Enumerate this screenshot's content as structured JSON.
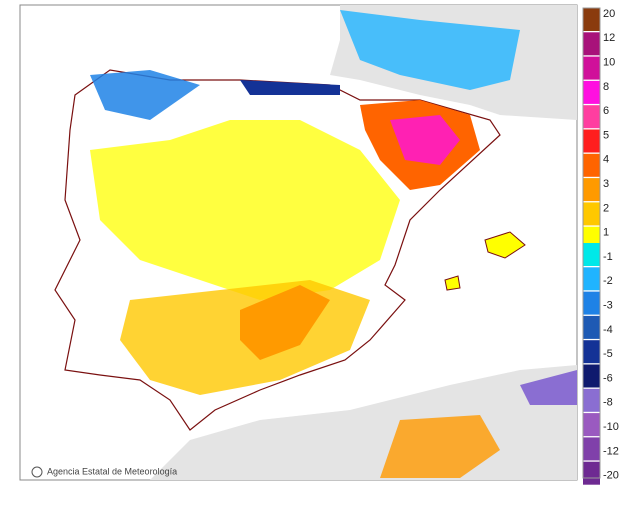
{
  "credit": "Agencia Estatal de Meteorología",
  "legend": {
    "items": [
      {
        "label": 20,
        "color": "#8a3b0e"
      },
      {
        "label": 12,
        "color": "#a8127a"
      },
      {
        "label": 10,
        "color": "#d0109a"
      },
      {
        "label": 8,
        "color": "#ff10e0"
      },
      {
        "label": 6,
        "color": "#ff3ea0"
      },
      {
        "label": 5,
        "color": "#ff1e1e"
      },
      {
        "label": 4,
        "color": "#ff6400"
      },
      {
        "label": 3,
        "color": "#ff9a00"
      },
      {
        "label": 2,
        "color": "#ffc800"
      },
      {
        "label": 1,
        "color": "#ffff00"
      },
      {
        "label": -1,
        "color": "#00e8e8"
      },
      {
        "label": -2,
        "color": "#20b4ff"
      },
      {
        "label": -3,
        "color": "#1e82e6"
      },
      {
        "label": -4,
        "color": "#1e5ab4"
      },
      {
        "label": -5,
        "color": "#143296"
      },
      {
        "label": -6,
        "color": "#0f1a6e"
      },
      {
        "label": -8,
        "color": "#8a6ed2"
      },
      {
        "label": -10,
        "color": "#9a5ac0"
      },
      {
        "label": -12,
        "color": "#8040aa"
      },
      {
        "label": -20,
        "color": "#6e2a92"
      }
    ]
  }
}
